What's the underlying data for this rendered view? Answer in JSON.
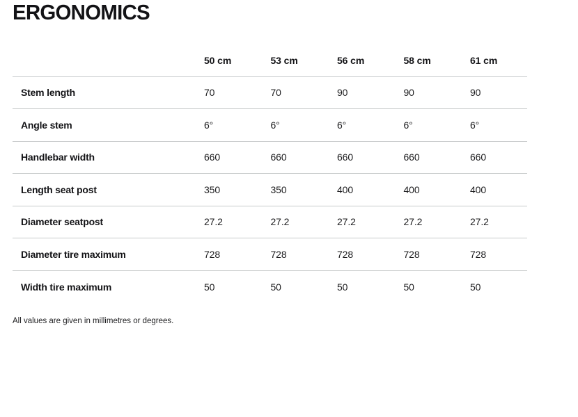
{
  "page": {
    "title": "ERGONOMICS",
    "footnote": "All values are given in millimetres or degrees."
  },
  "colors": {
    "rule": "#c6c9ca",
    "text_primary": "#131316"
  },
  "table": {
    "columns": [
      "50 cm",
      "53 cm",
      "56 cm",
      "58 cm",
      "61 cm"
    ],
    "rows": [
      {
        "label": "Stem length",
        "values": [
          "70",
          "70",
          "90",
          "90",
          "90"
        ]
      },
      {
        "label": "Angle stem",
        "values": [
          "6°",
          "6°",
          "6°",
          "6°",
          "6°"
        ]
      },
      {
        "label": "Handlebar width",
        "values": [
          "660",
          "660",
          "660",
          "660",
          "660"
        ]
      },
      {
        "label": "Length seat post",
        "values": [
          "350",
          "350",
          "400",
          "400",
          "400"
        ]
      },
      {
        "label": "Diameter seatpost",
        "values": [
          "27.2",
          "27.2",
          "27.2",
          "27.2",
          "27.2"
        ]
      },
      {
        "label": "Diameter tire maximum",
        "values": [
          "728",
          "728",
          "728",
          "728",
          "728"
        ]
      },
      {
        "label": "Width tire maximum",
        "values": [
          "50",
          "50",
          "50",
          "50",
          "50"
        ]
      }
    ]
  }
}
